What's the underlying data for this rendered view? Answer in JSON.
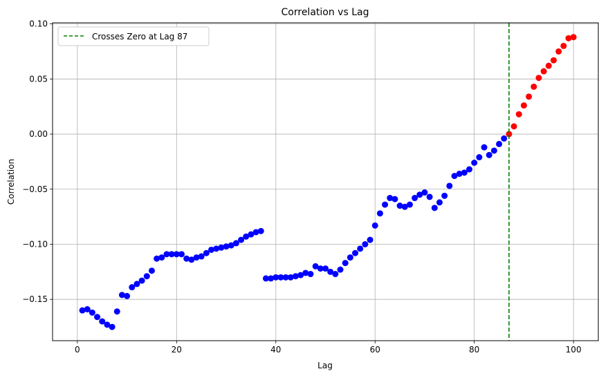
{
  "chart_data": {
    "type": "scatter",
    "title": "Correlation vs Lag",
    "xlabel": "Lag",
    "ylabel": "Correlation",
    "xlim": [
      -5,
      105
    ],
    "ylim": [
      -0.1875,
      0.101
    ],
    "xticks": [
      0,
      20,
      40,
      60,
      80,
      100
    ],
    "xtick_labels": [
      "0",
      "20",
      "40",
      "60",
      "80",
      "100"
    ],
    "yticks": [
      -0.15,
      -0.1,
      -0.05,
      0.0,
      0.05,
      0.1
    ],
    "ytick_labels": [
      "−0.15",
      "−0.10",
      "−0.05",
      "0.00",
      "0.05",
      "0.10"
    ],
    "grid": true,
    "legend_position": "top-left",
    "legend_entries": [
      "Crosses Zero at Lag 87"
    ],
    "vline": {
      "x": 87,
      "color": "#008000",
      "style": "dashed"
    },
    "colors": {
      "below": "#0000ff",
      "above": "#ff0000"
    },
    "series": [
      {
        "color": "#0000ff",
        "x": [
          1,
          2,
          3,
          4,
          5,
          6,
          7,
          8,
          9,
          10,
          11,
          12,
          13,
          14,
          15,
          16,
          17,
          18,
          19,
          20,
          21,
          22,
          23,
          24,
          25,
          26,
          27,
          28,
          29,
          30,
          31,
          32,
          33,
          34,
          35,
          36,
          37,
          38,
          39,
          40,
          41,
          42,
          43,
          44,
          45,
          46,
          47,
          48,
          49,
          50,
          51,
          52,
          53,
          54,
          55,
          56,
          57,
          58,
          59,
          60,
          61,
          62,
          63,
          64,
          65,
          66,
          67,
          68,
          69,
          70,
          71,
          72,
          73,
          74,
          75,
          76,
          77,
          78,
          79,
          80,
          81,
          82,
          83,
          84,
          85,
          86
        ],
        "y": [
          -0.16,
          -0.159,
          -0.162,
          -0.166,
          -0.17,
          -0.173,
          -0.175,
          -0.161,
          -0.146,
          -0.147,
          -0.139,
          -0.136,
          -0.133,
          -0.129,
          -0.124,
          -0.113,
          -0.112,
          -0.109,
          -0.109,
          -0.109,
          -0.109,
          -0.113,
          -0.114,
          -0.112,
          -0.111,
          -0.108,
          -0.105,
          -0.104,
          -0.103,
          -0.102,
          -0.101,
          -0.099,
          -0.096,
          -0.093,
          -0.091,
          -0.089,
          -0.088,
          -0.131,
          -0.131,
          -0.13,
          -0.13,
          -0.13,
          -0.13,
          -0.129,
          -0.128,
          -0.126,
          -0.127,
          -0.12,
          -0.122,
          -0.122,
          -0.125,
          -0.127,
          -0.123,
          -0.117,
          -0.112,
          -0.108,
          -0.104,
          -0.1,
          -0.096,
          -0.083,
          -0.072,
          -0.064,
          -0.058,
          -0.059,
          -0.065,
          -0.066,
          -0.064,
          -0.058,
          -0.055,
          -0.053,
          -0.057,
          -0.067,
          -0.062,
          -0.056,
          -0.047,
          -0.038,
          -0.036,
          -0.035,
          -0.032,
          -0.026,
          -0.021,
          -0.012,
          -0.019,
          -0.015,
          -0.009,
          -0.004
        ]
      },
      {
        "color": "#ff0000",
        "x": [
          87,
          88,
          89,
          90,
          91,
          92,
          93,
          94,
          95,
          96,
          97,
          98,
          99,
          100
        ],
        "y": [
          0.0,
          0.007,
          0.018,
          0.026,
          0.034,
          0.043,
          0.051,
          0.057,
          0.062,
          0.067,
          0.075,
          0.08,
          0.087,
          0.088
        ]
      }
    ]
  }
}
